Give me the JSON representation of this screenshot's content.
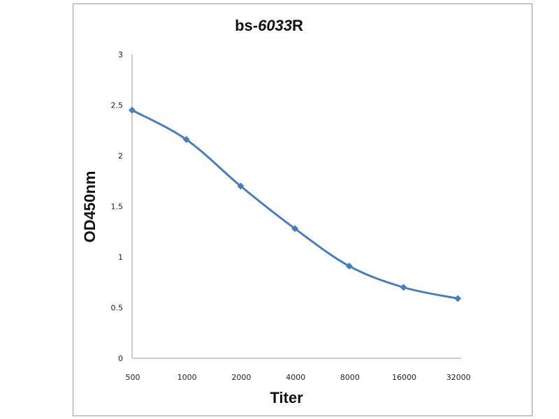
{
  "chart_data": {
    "type": "line",
    "title_parts": [
      "bs-",
      "6033",
      "R"
    ],
    "title": "bs-6033R",
    "xlabel": "Titer",
    "ylabel": "OD450nm",
    "categories": [
      "500",
      "1000",
      "2000",
      "4000",
      "8000",
      "16000",
      "32000"
    ],
    "series": [
      {
        "values": [
          2.45,
          2.16,
          1.7,
          1.28,
          0.91,
          0.7,
          0.59
        ]
      }
    ],
    "ylim": [
      0,
      3
    ],
    "yticks": [
      "0",
      "0.5",
      "1",
      "1.5",
      "2",
      "2.5",
      "3"
    ],
    "grid": false,
    "smooth": true,
    "marker": "diamond",
    "line_color": "#4a7ebb",
    "legend": "none"
  }
}
